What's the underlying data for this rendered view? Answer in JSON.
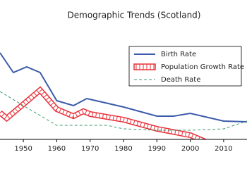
{
  "chart_data": {
    "type": "line",
    "title": "Demographic Trends (Scotland)",
    "xlim": [
      1943,
      2017
    ],
    "xticks": [
      1950,
      1960,
      1970,
      1980,
      1990,
      2000,
      2010
    ],
    "ylim": [
      0,
      30
    ],
    "legend": "upper right",
    "series": [
      {
        "name": "Birth Rate",
        "color": "#3b5ba9",
        "style": "solid",
        "x": [
          1943,
          1947,
          1951,
          1955,
          1960,
          1965,
          1969,
          1980,
          1990,
          1995,
          2000,
          2010,
          2017
        ],
        "values": [
          25,
          19.4,
          21,
          19.4,
          11.4,
          10,
          12,
          9.6,
          7,
          7,
          7.8,
          5.6,
          5.4
        ]
      },
      {
        "name": "Population Growth Rate",
        "color": "#e8303a",
        "style": "band",
        "x": [
          1943,
          1945,
          1955,
          1960,
          1965,
          1968,
          1970,
          1980,
          1990,
          2000,
          2005
        ],
        "values": [
          8,
          6.4,
          14.4,
          9,
          7,
          8.4,
          7.6,
          6,
          3.4,
          1.6,
          -0.4
        ]
      },
      {
        "name": "Death Rate",
        "color": "#3c9a6a",
        "style": "dashed",
        "x": [
          1943,
          1950,
          1960,
          1970,
          1975,
          1980,
          1990,
          2000,
          2010,
          2017
        ],
        "values": [
          14,
          10,
          4.4,
          4.4,
          4.4,
          3.4,
          3,
          3,
          3.4,
          5.6
        ]
      }
    ]
  }
}
